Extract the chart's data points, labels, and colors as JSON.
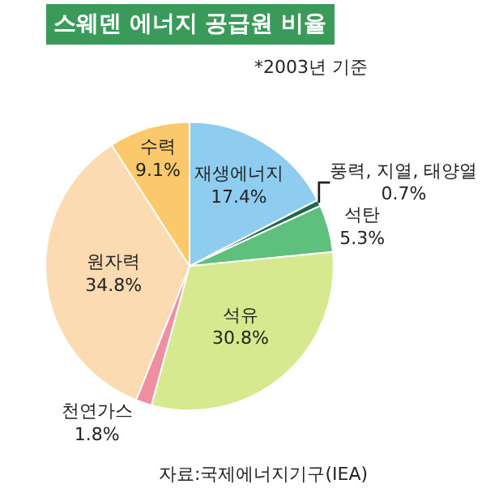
{
  "chart_data": {
    "type": "pie",
    "title": "스웨덴 에너지 공급원 비율",
    "categories": [
      "재생에너지",
      "풍력, 지열, 태양열",
      "석탄",
      "석유",
      "천연가스",
      "원자력",
      "수력"
    ],
    "values": [
      17.4,
      0.7,
      5.3,
      30.8,
      1.8,
      34.8,
      9.1
    ],
    "value_labels": [
      "17.4%",
      "0.7%",
      "5.3%",
      "30.8%",
      "1.8%",
      "34.8%",
      "9.1%"
    ],
    "colors": [
      "#8fcdf0",
      "#1d6b4c",
      "#5fbf7c",
      "#d6e98e",
      "#f08fa2",
      "#fcdab2",
      "#fbc96c"
    ],
    "annotations": [
      "*2003년 기준",
      "자료:국제에너지기구(IEA)"
    ],
    "legend": false
  }
}
